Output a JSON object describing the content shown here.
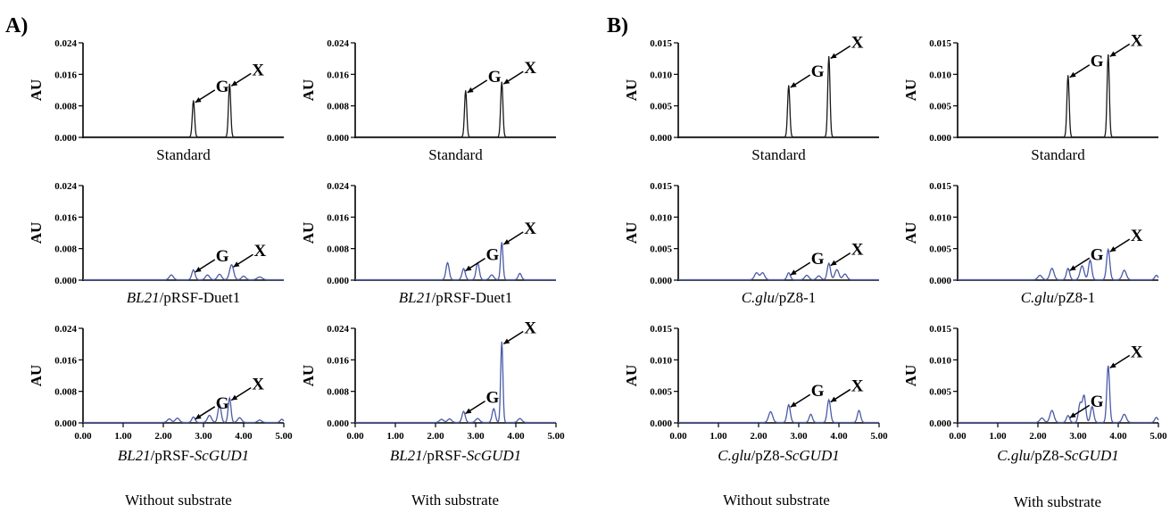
{
  "panels": [
    {
      "label": "A)",
      "conditions": [
        "Without substrate",
        "With substrate"
      ]
    },
    {
      "label": "B)",
      "conditions": [
        "Without substrate",
        "With substrate"
      ]
    }
  ],
  "colors": {
    "standard": "#1a1a1a",
    "sample": "#4a5aa8",
    "axis": "#000000"
  },
  "chart_data": [
    {
      "type": "line",
      "panel": "A)",
      "condition": "Without substrate",
      "caption": [
        {
          "t": "Standard"
        }
      ],
      "ylabel": "AU",
      "ylim": [
        0,
        0.024
      ],
      "yticks": [
        "0.000",
        "0.008",
        "0.016",
        "0.024"
      ],
      "xlim": [
        0,
        5
      ],
      "xticks": [],
      "color": "#1a1a1a",
      "peaks": [
        {
          "x": 2.75,
          "y": 0.0093,
          "w": 0.028
        },
        {
          "x": 3.65,
          "y": 0.0135,
          "w": 0.028
        }
      ],
      "annotations": [
        {
          "text": "G",
          "x": 2.75,
          "y": 0.0093
        },
        {
          "text": "X",
          "x": 3.65,
          "y": 0.0135
        }
      ]
    },
    {
      "type": "line",
      "panel": "A)",
      "condition": "With substrate",
      "caption": [
        {
          "t": "Standard"
        }
      ],
      "ylabel": "AU",
      "ylim": [
        0,
        0.024
      ],
      "yticks": [
        "0.000",
        "0.008",
        "0.016",
        "0.024"
      ],
      "xlim": [
        0,
        5
      ],
      "xticks": [],
      "color": "#1a1a1a",
      "peaks": [
        {
          "x": 2.75,
          "y": 0.0118,
          "w": 0.028
        },
        {
          "x": 3.65,
          "y": 0.014,
          "w": 0.028
        }
      ],
      "annotations": [
        {
          "text": "G",
          "x": 2.75,
          "y": 0.0118
        },
        {
          "text": "X",
          "x": 3.65,
          "y": 0.014
        }
      ]
    },
    {
      "type": "line",
      "panel": "B)",
      "condition": "Without substrate",
      "caption": [
        {
          "t": "Standard"
        }
      ],
      "ylabel": "AU",
      "ylim": [
        0,
        0.015
      ],
      "yticks": [
        "0.000",
        "0.005",
        "0.010",
        "0.015"
      ],
      "xlim": [
        0,
        5
      ],
      "xticks": [],
      "color": "#1a1a1a",
      "peaks": [
        {
          "x": 2.75,
          "y": 0.0082,
          "w": 0.028
        },
        {
          "x": 3.75,
          "y": 0.0128,
          "w": 0.028
        }
      ],
      "annotations": [
        {
          "text": "G",
          "x": 2.75,
          "y": 0.0082
        },
        {
          "text": "X",
          "x": 3.75,
          "y": 0.0128
        }
      ]
    },
    {
      "type": "line",
      "panel": "B)",
      "condition": "With substrate",
      "caption": [
        {
          "t": "Standard"
        }
      ],
      "ylabel": "AU",
      "ylim": [
        0,
        0.015
      ],
      "yticks": [
        "0.000",
        "0.005",
        "0.010",
        "0.015"
      ],
      "xlim": [
        0,
        5
      ],
      "xticks": [],
      "color": "#1a1a1a",
      "peaks": [
        {
          "x": 2.75,
          "y": 0.0098,
          "w": 0.028
        },
        {
          "x": 3.75,
          "y": 0.0131,
          "w": 0.028
        }
      ],
      "annotations": [
        {
          "text": "G",
          "x": 2.75,
          "y": 0.0098
        },
        {
          "text": "X",
          "x": 3.75,
          "y": 0.0131
        }
      ]
    },
    {
      "type": "line",
      "panel": "A)",
      "condition": "Without substrate",
      "caption": [
        {
          "t": "BL21",
          "i": true
        },
        {
          "t": "/pRSF-Duet1"
        }
      ],
      "ylabel": "AU",
      "ylim": [
        0,
        0.024
      ],
      "yticks": [
        "0.000",
        "0.008",
        "0.016",
        "0.024"
      ],
      "xlim": [
        0,
        5
      ],
      "xticks": [],
      "color": "#4a5aa8",
      "peaks": [
        {
          "x": 2.2,
          "y": 0.0012,
          "w": 0.05
        },
        {
          "x": 2.75,
          "y": 0.0025,
          "w": 0.04
        },
        {
          "x": 3.1,
          "y": 0.0012,
          "w": 0.05
        },
        {
          "x": 3.4,
          "y": 0.0014,
          "w": 0.05
        },
        {
          "x": 3.7,
          "y": 0.0038,
          "w": 0.05
        },
        {
          "x": 4.0,
          "y": 0.0009,
          "w": 0.05
        },
        {
          "x": 4.4,
          "y": 0.0007,
          "w": 0.06
        }
      ],
      "annotations": [
        {
          "text": "G",
          "x": 2.75,
          "y": 0.0025
        },
        {
          "text": "X",
          "x": 3.7,
          "y": 0.0038
        }
      ]
    },
    {
      "type": "line",
      "panel": "A)",
      "condition": "With substrate",
      "caption": [
        {
          "t": "BL21",
          "i": true
        },
        {
          "t": "/pRSF-Duet1"
        }
      ],
      "ylabel": "AU",
      "ylim": [
        0,
        0.024
      ],
      "yticks": [
        "0.000",
        "0.008",
        "0.016",
        "0.024"
      ],
      "xlim": [
        0,
        5
      ],
      "xticks": [],
      "color": "#4a5aa8",
      "peaks": [
        {
          "x": 2.3,
          "y": 0.0043,
          "w": 0.04
        },
        {
          "x": 2.7,
          "y": 0.0028,
          "w": 0.04
        },
        {
          "x": 3.05,
          "y": 0.0043,
          "w": 0.04
        },
        {
          "x": 3.4,
          "y": 0.0012,
          "w": 0.05
        },
        {
          "x": 3.65,
          "y": 0.0095,
          "w": 0.03
        },
        {
          "x": 4.1,
          "y": 0.0016,
          "w": 0.04
        }
      ],
      "annotations": [
        {
          "text": "G",
          "x": 2.7,
          "y": 0.0028
        },
        {
          "text": "X",
          "x": 3.65,
          "y": 0.0095
        }
      ]
    },
    {
      "type": "line",
      "panel": "B)",
      "condition": "Without substrate",
      "caption": [
        {
          "t": "C.glu",
          "i": true
        },
        {
          "t": "/pZ8-1"
        }
      ],
      "ylabel": "AU",
      "ylim": [
        0,
        0.015
      ],
      "yticks": [
        "0.000",
        "0.005",
        "0.010",
        "0.015"
      ],
      "xlim": [
        0,
        5
      ],
      "xticks": [],
      "color": "#4a5aa8",
      "peaks": [
        {
          "x": 1.95,
          "y": 0.0011,
          "w": 0.05
        },
        {
          "x": 2.1,
          "y": 0.0011,
          "w": 0.05
        },
        {
          "x": 2.75,
          "y": 0.0011,
          "w": 0.04
        },
        {
          "x": 3.2,
          "y": 0.0007,
          "w": 0.05
        },
        {
          "x": 3.5,
          "y": 0.0006,
          "w": 0.05
        },
        {
          "x": 3.75,
          "y": 0.0026,
          "w": 0.04
        },
        {
          "x": 3.95,
          "y": 0.0016,
          "w": 0.05
        },
        {
          "x": 4.15,
          "y": 0.0009,
          "w": 0.05
        }
      ],
      "annotations": [
        {
          "text": "G",
          "x": 2.75,
          "y": 0.0011
        },
        {
          "text": "X",
          "x": 3.75,
          "y": 0.0026
        }
      ]
    },
    {
      "type": "line",
      "panel": "B)",
      "condition": "With substrate",
      "caption": [
        {
          "t": "C.glu",
          "i": true
        },
        {
          "t": "/pZ8-1"
        }
      ],
      "ylabel": "AU",
      "ylim": [
        0,
        0.015
      ],
      "yticks": [
        "0.000",
        "0.005",
        "0.010",
        "0.015"
      ],
      "xlim": [
        0,
        5
      ],
      "xticks": [],
      "color": "#4a5aa8",
      "peaks": [
        {
          "x": 2.05,
          "y": 0.0007,
          "w": 0.05
        },
        {
          "x": 2.35,
          "y": 0.0018,
          "w": 0.05
        },
        {
          "x": 2.75,
          "y": 0.0018,
          "w": 0.04
        },
        {
          "x": 3.1,
          "y": 0.0022,
          "w": 0.05
        },
        {
          "x": 3.3,
          "y": 0.0031,
          "w": 0.04
        },
        {
          "x": 3.75,
          "y": 0.0048,
          "w": 0.04
        },
        {
          "x": 4.15,
          "y": 0.0015,
          "w": 0.05
        },
        {
          "x": 4.95,
          "y": 0.0007,
          "w": 0.04
        }
      ],
      "annotations": [
        {
          "text": "G",
          "x": 2.75,
          "y": 0.0018
        },
        {
          "text": "X",
          "x": 3.75,
          "y": 0.0048
        }
      ]
    },
    {
      "type": "line",
      "panel": "A)",
      "condition": "Without substrate",
      "caption": [
        {
          "t": "BL21",
          "i": true
        },
        {
          "t": "/pRSF-"
        },
        {
          "t": "ScGUD1",
          "i": true
        }
      ],
      "ylabel": "AU",
      "ylim": [
        0,
        0.024
      ],
      "yticks": [
        "0.000",
        "0.008",
        "0.016",
        "0.024"
      ],
      "xlim": [
        0,
        5
      ],
      "xticks": [
        "0.00",
        "1.00",
        "2.00",
        "3.00",
        "4.00",
        "5.00"
      ],
      "color": "#4a5aa8",
      "peaks": [
        {
          "x": 2.15,
          "y": 0.0009,
          "w": 0.05
        },
        {
          "x": 2.35,
          "y": 0.0011,
          "w": 0.05
        },
        {
          "x": 2.75,
          "y": 0.0014,
          "w": 0.04
        },
        {
          "x": 3.15,
          "y": 0.0018,
          "w": 0.05
        },
        {
          "x": 3.4,
          "y": 0.0045,
          "w": 0.04
        },
        {
          "x": 3.65,
          "y": 0.0062,
          "w": 0.035
        },
        {
          "x": 3.9,
          "y": 0.0012,
          "w": 0.05
        },
        {
          "x": 4.4,
          "y": 0.0006,
          "w": 0.05
        },
        {
          "x": 4.95,
          "y": 0.0008,
          "w": 0.04
        }
      ],
      "annotations": [
        {
          "text": "G",
          "x": 2.75,
          "y": 0.0014
        },
        {
          "text": "X",
          "x": 3.65,
          "y": 0.0062
        }
      ]
    },
    {
      "type": "line",
      "panel": "A)",
      "condition": "With substrate",
      "caption": [
        {
          "t": "BL21",
          "i": true
        },
        {
          "t": "/pRSF-"
        },
        {
          "t": "ScGUD1",
          "i": true
        }
      ],
      "ylabel": "AU",
      "ylim": [
        0,
        0.024
      ],
      "yticks": [
        "0.000",
        "0.008",
        "0.016",
        "0.024"
      ],
      "xlim": [
        0,
        5
      ],
      "xticks": [
        "0.00",
        "1.00",
        "2.00",
        "3.00",
        "4.00",
        "5.00"
      ],
      "color": "#4a5aa8",
      "peaks": [
        {
          "x": 2.15,
          "y": 0.0008,
          "w": 0.05
        },
        {
          "x": 2.35,
          "y": 0.0009,
          "w": 0.05
        },
        {
          "x": 2.7,
          "y": 0.0028,
          "w": 0.04
        },
        {
          "x": 3.05,
          "y": 0.001,
          "w": 0.05
        },
        {
          "x": 3.45,
          "y": 0.0035,
          "w": 0.04
        },
        {
          "x": 3.65,
          "y": 0.0205,
          "w": 0.028
        },
        {
          "x": 4.1,
          "y": 0.001,
          "w": 0.05
        }
      ],
      "annotations": [
        {
          "text": "G",
          "x": 2.7,
          "y": 0.0028
        },
        {
          "text": "X",
          "x": 3.65,
          "y": 0.0205
        }
      ]
    },
    {
      "type": "line",
      "panel": "B)",
      "condition": "Without substrate",
      "caption": [
        {
          "t": "C.glu",
          "i": true
        },
        {
          "t": "/pZ8-"
        },
        {
          "t": "ScGUD1",
          "i": true
        }
      ],
      "ylabel": "AU",
      "ylim": [
        0,
        0.015
      ],
      "yticks": [
        "0.000",
        "0.005",
        "0.010",
        "0.015"
      ],
      "xlim": [
        0,
        5
      ],
      "xticks": [
        "0.00",
        "1.00",
        "2.00",
        "3.00",
        "4.00",
        "5.00"
      ],
      "color": "#4a5aa8",
      "peaks": [
        {
          "x": 2.3,
          "y": 0.0017,
          "w": 0.05
        },
        {
          "x": 2.75,
          "y": 0.0028,
          "w": 0.04
        },
        {
          "x": 3.3,
          "y": 0.0013,
          "w": 0.04
        },
        {
          "x": 3.75,
          "y": 0.0036,
          "w": 0.04
        },
        {
          "x": 4.5,
          "y": 0.0019,
          "w": 0.04
        }
      ],
      "annotations": [
        {
          "text": "G",
          "x": 2.75,
          "y": 0.0028
        },
        {
          "text": "X",
          "x": 3.75,
          "y": 0.0036
        }
      ]
    },
    {
      "type": "line",
      "panel": "B)",
      "condition": "With substrate",
      "caption": [
        {
          "t": "C.glu",
          "i": true
        },
        {
          "t": "/pZ8-"
        },
        {
          "t": "ScGUD1",
          "i": true
        }
      ],
      "ylabel": "AU",
      "ylim": [
        0,
        0.015
      ],
      "yticks": [
        "0.000",
        "0.005",
        "0.010",
        "0.015"
      ],
      "xlim": [
        0,
        5
      ],
      "xticks": [
        "0.00",
        "1.00",
        "2.00",
        "3.00",
        "4.00",
        "5.00"
      ],
      "color": "#4a5aa8",
      "peaks": [
        {
          "x": 2.1,
          "y": 0.0007,
          "w": 0.05
        },
        {
          "x": 2.35,
          "y": 0.0019,
          "w": 0.05
        },
        {
          "x": 2.75,
          "y": 0.0011,
          "w": 0.04
        },
        {
          "x": 3.05,
          "y": 0.003,
          "w": 0.04
        },
        {
          "x": 3.15,
          "y": 0.0042,
          "w": 0.04
        },
        {
          "x": 3.35,
          "y": 0.0025,
          "w": 0.04
        },
        {
          "x": 3.75,
          "y": 0.009,
          "w": 0.035
        },
        {
          "x": 4.15,
          "y": 0.0013,
          "w": 0.05
        },
        {
          "x": 4.95,
          "y": 0.0008,
          "w": 0.04
        }
      ],
      "annotations": [
        {
          "text": "G",
          "x": 2.75,
          "y": 0.0011
        },
        {
          "text": "X",
          "x": 3.75,
          "y": 0.009
        }
      ]
    }
  ]
}
